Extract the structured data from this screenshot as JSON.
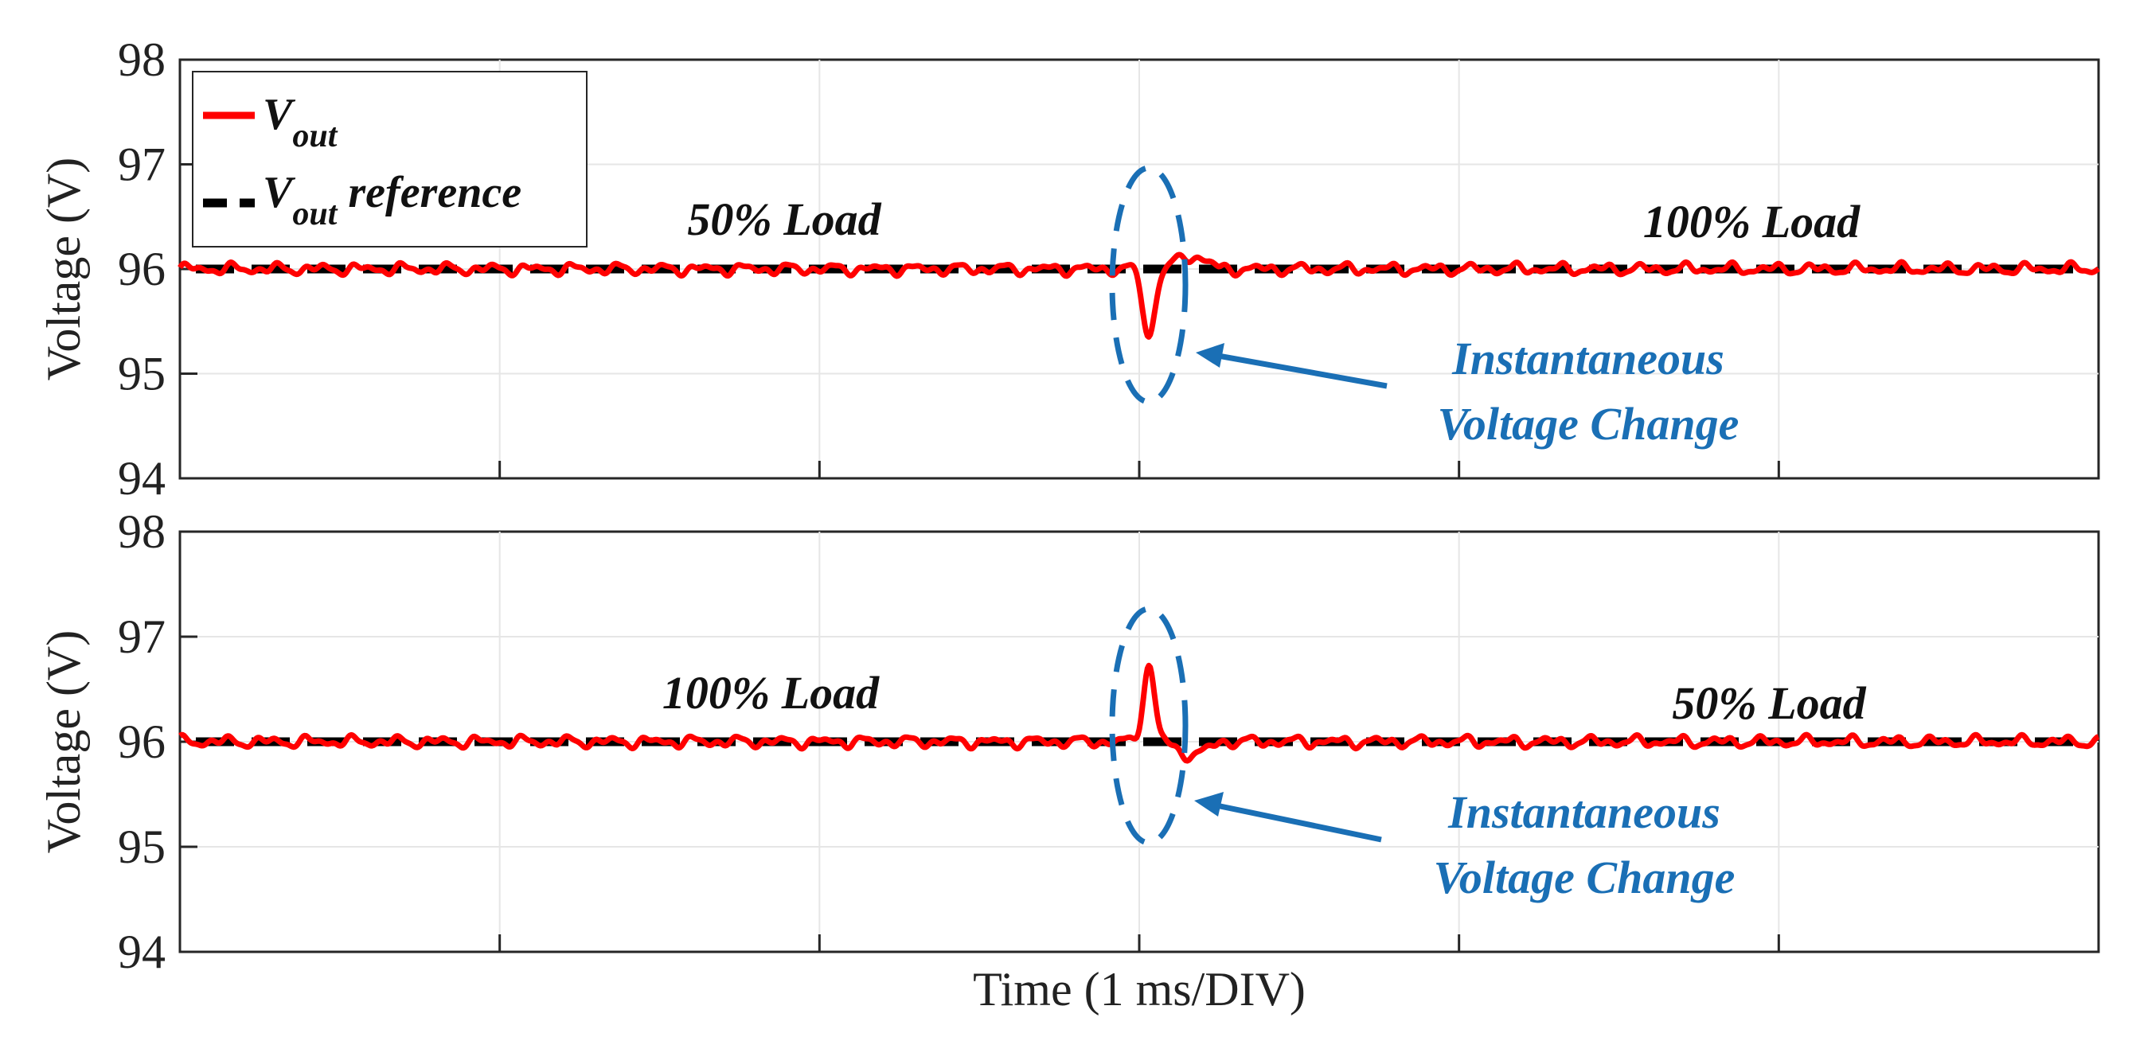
{
  "chart_data": [
    {
      "type": "line",
      "panel": "top",
      "xlabel": "",
      "ylabel": "Voltage (V)",
      "ylim": [
        94,
        98
      ],
      "yticks": [
        "94",
        "95",
        "96",
        "97",
        "98"
      ],
      "xlim": [
        0,
        6
      ],
      "x_divisions": 6,
      "grid": true,
      "series": [
        {
          "name": "Vout",
          "color": "#ff0000",
          "style": "solid",
          "nominal": 96,
          "ripple": 0.06,
          "event": {
            "x": 3.03,
            "peak": 95.35,
            "direction": "dip"
          }
        },
        {
          "name": "Vout reference",
          "color": "#000000",
          "style": "dashed",
          "value": 96
        }
      ],
      "legend": {
        "position": "top-left",
        "entries": [
          {
            "main": "V",
            "sub": "out",
            "suffix": ""
          },
          {
            "main": "V",
            "sub": "out",
            "suffix": " reference"
          }
        ]
      },
      "annotations": {
        "left_load": "50% Load",
        "right_load": "100% Load",
        "change_line1": "Instantaneous",
        "change_line2": "Voltage Change",
        "highlight_color": "#1a6fb5"
      }
    },
    {
      "type": "line",
      "panel": "bottom",
      "xlabel": "Time (1 ms/DIV)",
      "ylabel": "Voltage (V)",
      "ylim": [
        94,
        98
      ],
      "yticks": [
        "94",
        "95",
        "96",
        "97",
        "98"
      ],
      "xlim": [
        0,
        6
      ],
      "x_divisions": 6,
      "grid": true,
      "series": [
        {
          "name": "Vout",
          "color": "#ff0000",
          "style": "solid",
          "nominal": 96,
          "ripple": 0.06,
          "event": {
            "x": 3.03,
            "peak": 96.72,
            "direction": "spike"
          }
        },
        {
          "name": "Vout reference",
          "color": "#000000",
          "style": "dashed",
          "value": 96
        }
      ],
      "annotations": {
        "left_load": "100% Load",
        "right_load": "50% Load",
        "change_line1": "Instantaneous",
        "change_line2": "Voltage Change",
        "highlight_color": "#1a6fb5"
      }
    }
  ]
}
